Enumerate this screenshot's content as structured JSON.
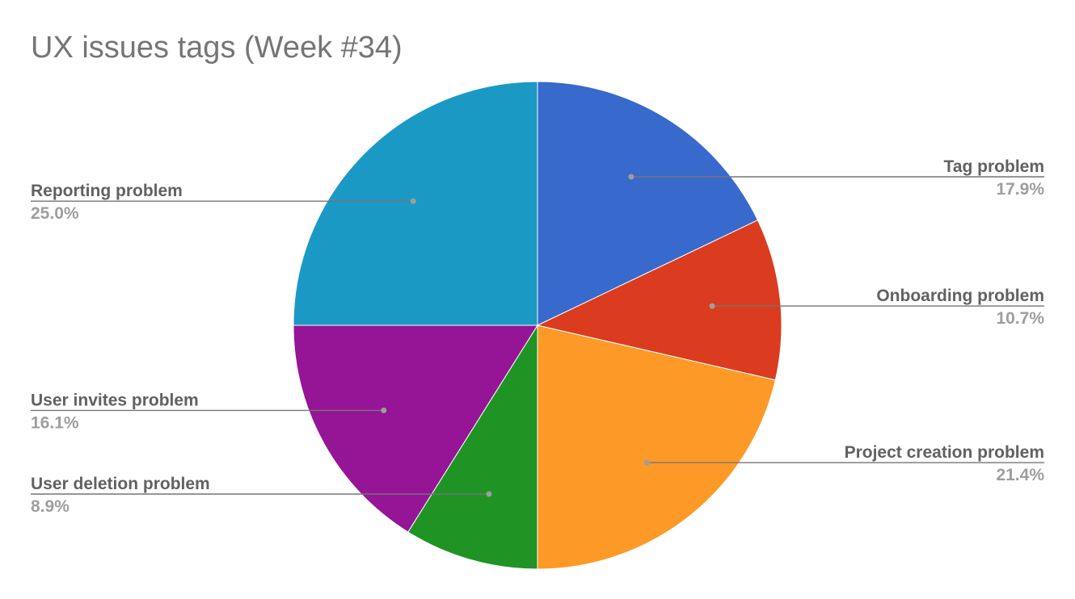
{
  "chart_data": {
    "type": "pie",
    "title": "UX issues tags (Week #34)",
    "slices": [
      {
        "label": "Tag problem",
        "value": 17.9,
        "value_label": "17.9%",
        "color": "#3869cc"
      },
      {
        "label": "Onboarding problem",
        "value": 10.7,
        "value_label": "10.7%",
        "color": "#db3b1f"
      },
      {
        "label": "Project creation problem",
        "value": 21.4,
        "value_label": "21.4%",
        "color": "#fd9a27"
      },
      {
        "label": "User deletion problem",
        "value": 8.9,
        "value_label": "8.9%",
        "color": "#1f9424"
      },
      {
        "label": "User invites problem",
        "value": 16.1,
        "value_label": "16.1%",
        "color": "#961496"
      },
      {
        "label": "Reporting problem",
        "value": 25.0,
        "value_label": "25.0%",
        "color": "#1b99c5"
      }
    ],
    "legend": "none"
  }
}
